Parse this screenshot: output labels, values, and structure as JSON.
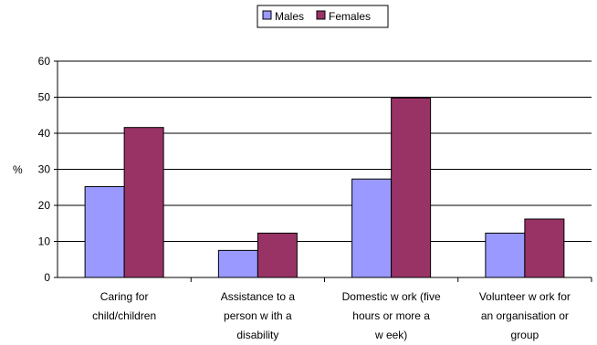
{
  "chart_data": {
    "type": "bar",
    "title": "",
    "xlabel": "",
    "ylabel": "%",
    "ylim": [
      0,
      60
    ],
    "yticks": [
      0,
      10,
      20,
      30,
      40,
      50,
      60
    ],
    "grid": true,
    "legend_position": "top",
    "categories": [
      [
        "Caring for",
        "child/children"
      ],
      [
        "Assistance to a",
        "person w ith a",
        "disability"
      ],
      [
        "Domestic w ork (five",
        "hours or more a",
        "w eek)"
      ],
      [
        "Volunteer w ork for",
        "an organisation or",
        "group"
      ]
    ],
    "series": [
      {
        "name": "Males",
        "color": "#9999ff",
        "values": [
          25.2,
          7.5,
          27.3,
          12.3
        ]
      },
      {
        "name": "Females",
        "color": "#993366",
        "values": [
          41.6,
          12.3,
          49.8,
          16.2
        ]
      }
    ]
  }
}
